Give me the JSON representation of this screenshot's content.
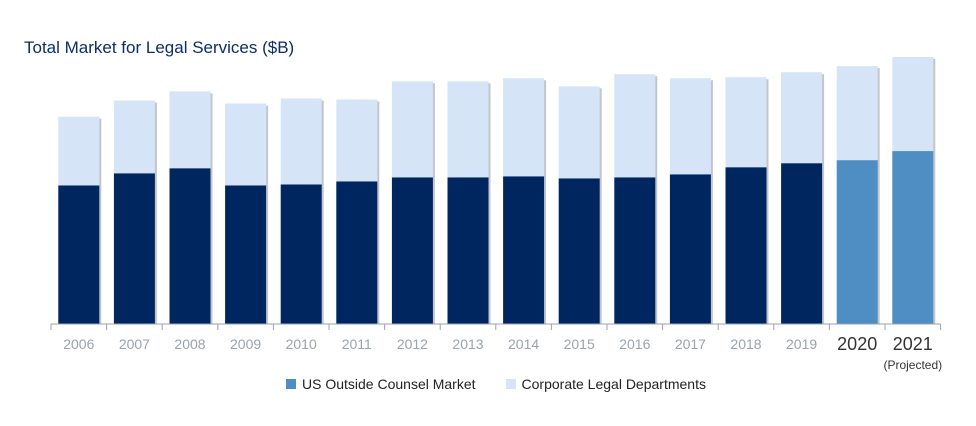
{
  "chart_data": {
    "type": "bar",
    "stacked": true,
    "title": "Total Market for Legal Services ($B)",
    "categories": [
      "2006",
      "2007",
      "2008",
      "2009",
      "2010",
      "2011",
      "2012",
      "2013",
      "2014",
      "2015",
      "2016",
      "2017",
      "2018",
      "2019",
      "2020",
      "2021"
    ],
    "projected_note": "(Projected)",
    "projected_note_category": "2021",
    "highlight_categories": [
      "2020",
      "2021"
    ],
    "ylim": [
      0,
      265
    ],
    "grid": false,
    "legend_position": "bottom",
    "series": [
      {
        "name": "US Outside Counsel Market",
        "values": [
          137,
          149,
          154,
          137,
          138,
          141,
          145,
          145,
          146,
          144,
          145,
          148,
          155,
          159,
          162,
          171
        ]
      },
      {
        "name": "Corporate Legal Departments",
        "values": [
          68,
          72,
          76,
          81,
          85,
          81,
          95,
          95,
          97,
          91,
          102,
          95,
          89,
          90,
          93,
          93
        ]
      }
    ],
    "colors": {
      "bottom": "#002660",
      "top": "#d6e4f8",
      "bottom_highlight": "#4f8ec3",
      "top_highlight": "#d6e4f8",
      "legend_bottom": "#4f8ec3",
      "legend_top": "#d6e4f8",
      "axis": "#9aa3ad",
      "shadow": "#c2c6cc"
    }
  }
}
